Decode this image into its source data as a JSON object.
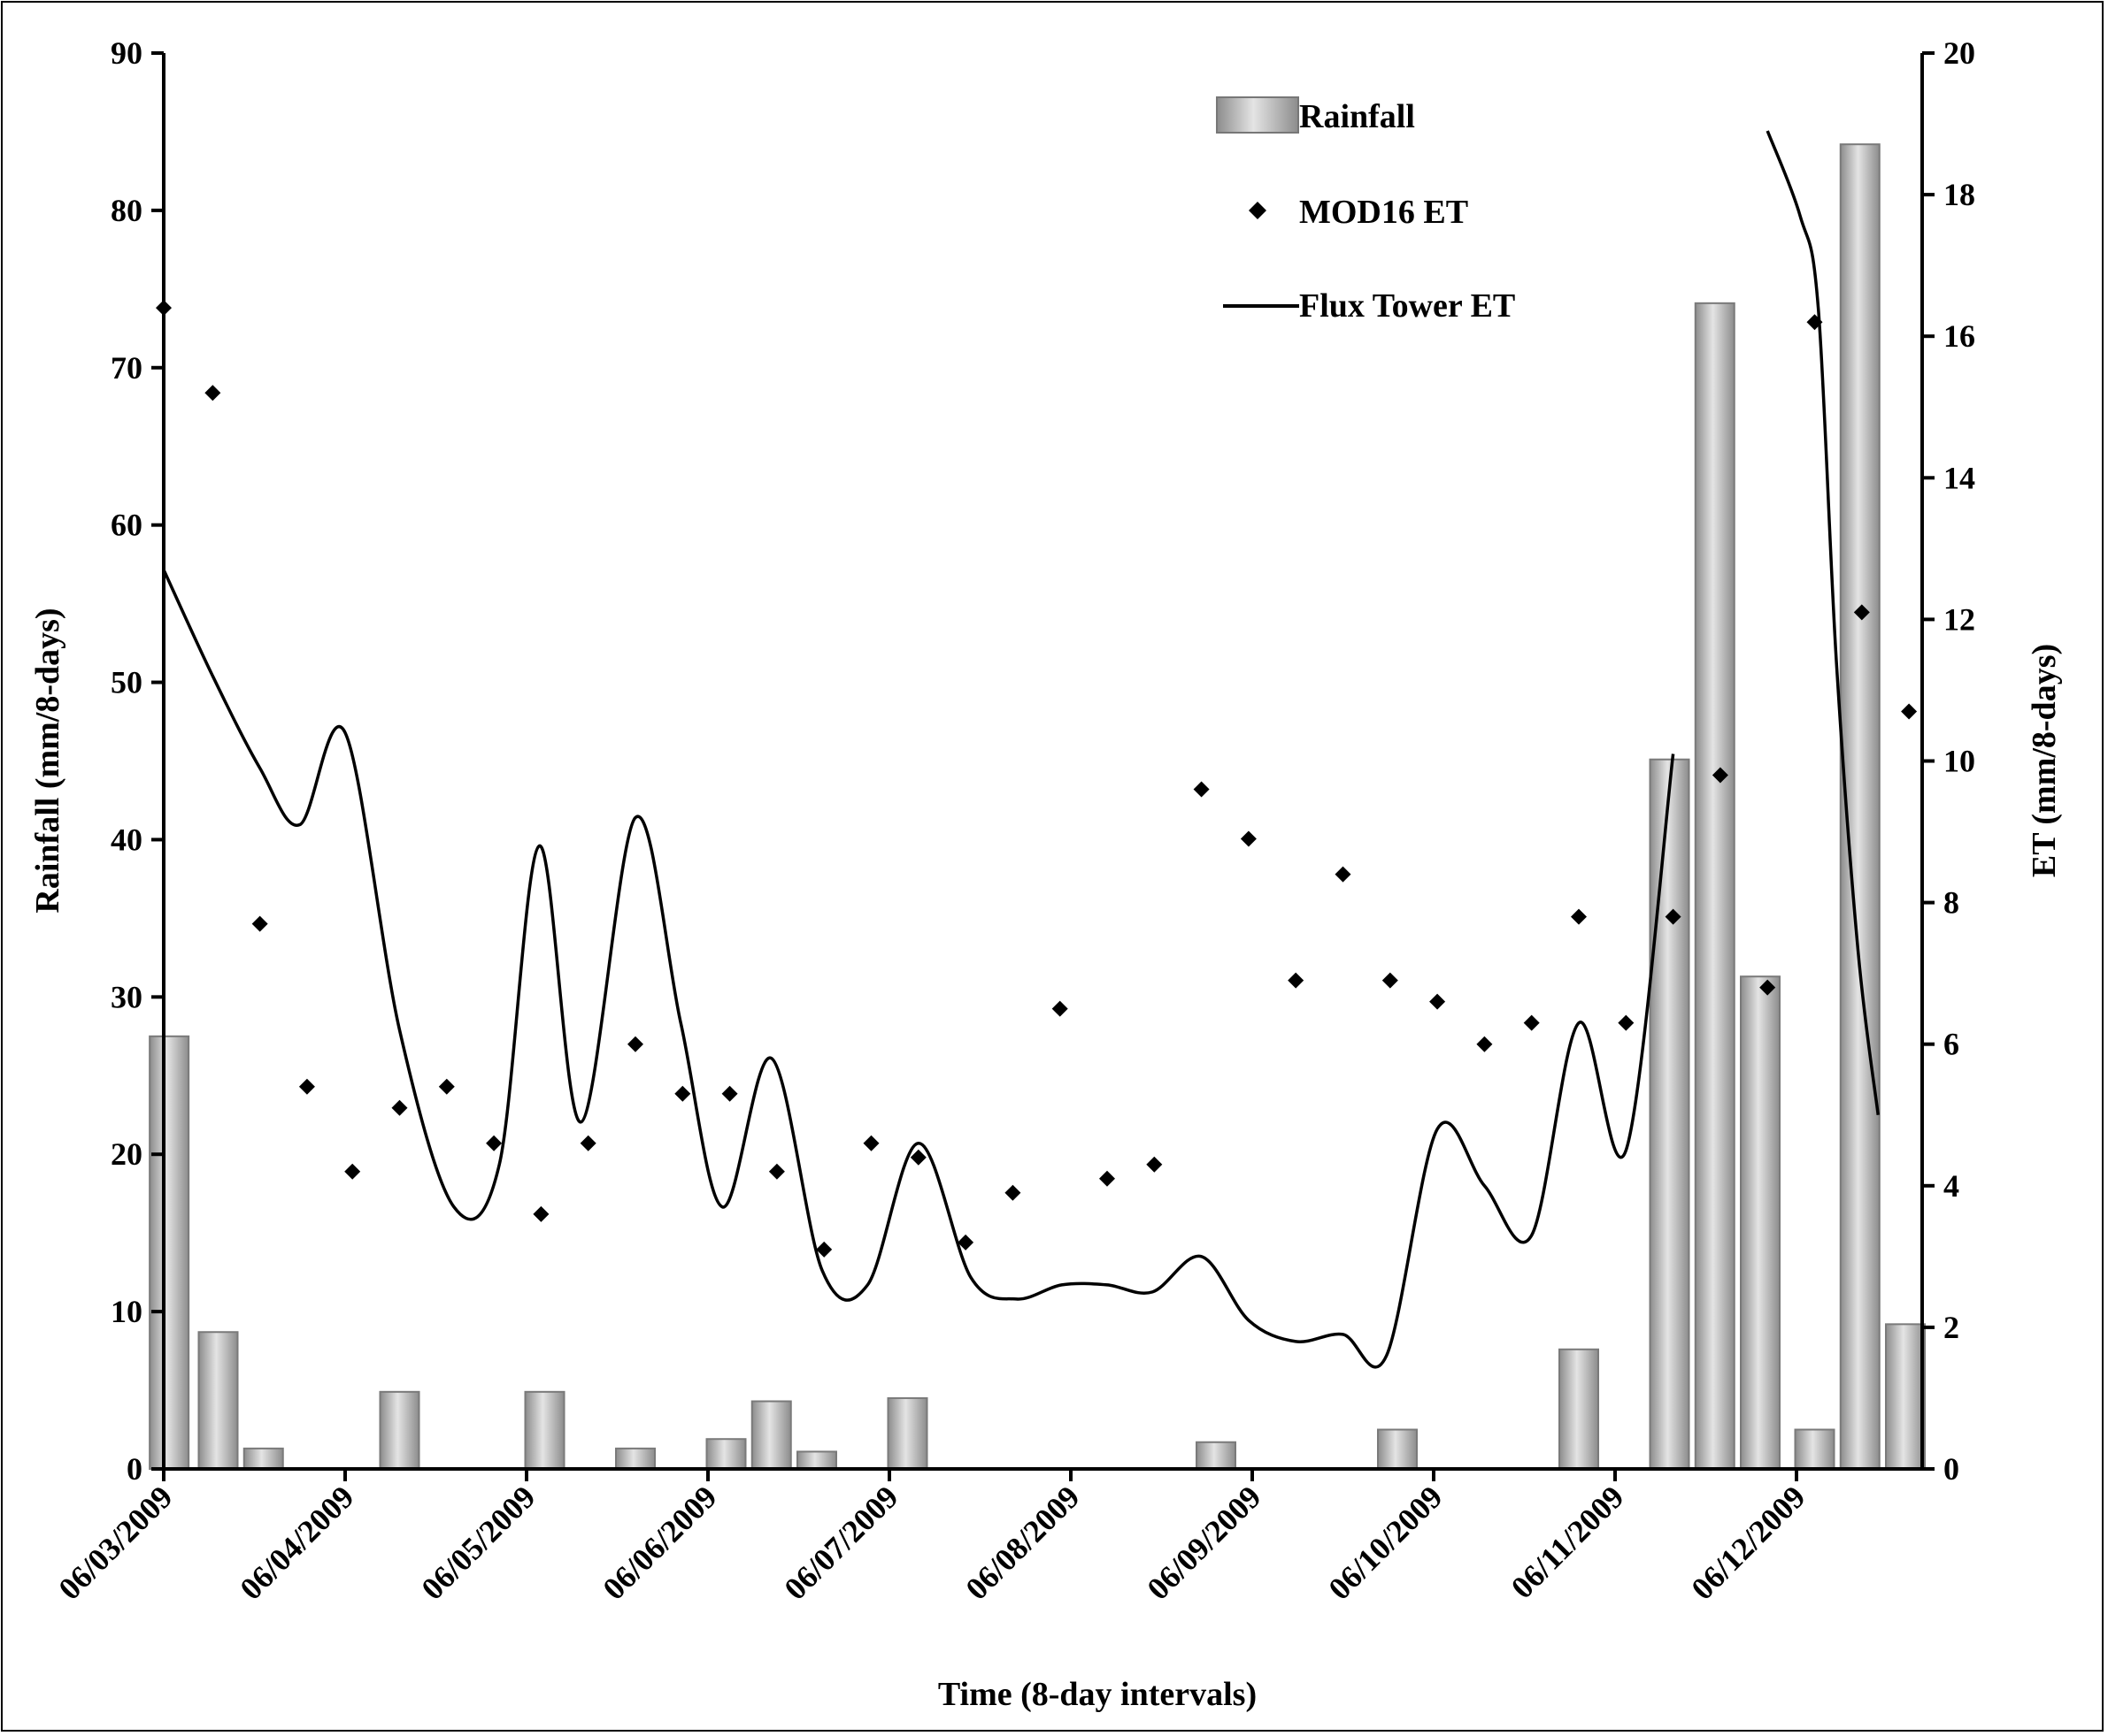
{
  "chart_data": {
    "type": "bar+scatter+line",
    "xlabel": "Time (8-day intervals)",
    "ylabel_left": "Rainfall (mm/8-days)",
    "ylabel_right": "ET (mm/8-days)",
    "ylim_left": [
      0,
      90
    ],
    "ylim_right": [
      0,
      20
    ],
    "yticks_left": [
      "0",
      "10",
      "20",
      "30",
      "40",
      "50",
      "60",
      "70",
      "80",
      "90"
    ],
    "yticks_right": [
      "0",
      "2",
      "4",
      "6",
      "8",
      "10",
      "12",
      "14",
      "16",
      "18",
      "20"
    ],
    "x_tick_labels": [
      "06/03/2009",
      "06/04/2009",
      "06/05/2009",
      "06/06/2009",
      "06/07/2009",
      "06/08/2009",
      "06/09/2009",
      "06/10/2009",
      "06/11/2009",
      "06/12/2009"
    ],
    "legend": {
      "position": "top-right",
      "rainfall": "Rainfall",
      "mod16": "MOD16 ET",
      "flux": "Flux Tower ET"
    },
    "series": [
      {
        "name": "Rainfall",
        "axis": "left",
        "kind": "bar",
        "points": [
          [
            0.03,
            27.5
          ],
          [
            0.3,
            8.7
          ],
          [
            0.55,
            1.3
          ],
          [
            1.3,
            4.9
          ],
          [
            2.1,
            4.9
          ],
          [
            2.6,
            1.3
          ],
          [
            3.1,
            1.9
          ],
          [
            3.35,
            4.3
          ],
          [
            3.6,
            1.1
          ],
          [
            4.1,
            4.5
          ],
          [
            5.8,
            1.7
          ],
          [
            6.8,
            2.5
          ],
          [
            7.8,
            7.6
          ],
          [
            8.3,
            45.1
          ],
          [
            8.55,
            74.1
          ],
          [
            8.8,
            31.3
          ],
          [
            9.1,
            2.5
          ],
          [
            9.35,
            84.2
          ],
          [
            9.6,
            9.2
          ]
        ]
      },
      {
        "name": "MOD16 ET",
        "axis": "right",
        "kind": "scatter",
        "points": [
          [
            0,
            16.4
          ],
          [
            0.27,
            15.2
          ],
          [
            0.53,
            7.7
          ],
          [
            0.79,
            5.4
          ],
          [
            1.04,
            4.2
          ],
          [
            1.3,
            5.1
          ],
          [
            1.56,
            5.4
          ],
          [
            1.82,
            4.6
          ],
          [
            2.08,
            3.6
          ],
          [
            2.34,
            4.6
          ],
          [
            2.6,
            6.0
          ],
          [
            2.86,
            5.3
          ],
          [
            3.12,
            5.3
          ],
          [
            3.38,
            4.2
          ],
          [
            3.64,
            3.1
          ],
          [
            3.9,
            4.6
          ],
          [
            4.16,
            4.4
          ],
          [
            4.42,
            3.2
          ],
          [
            4.68,
            3.9
          ],
          [
            4.94,
            6.5
          ],
          [
            5.2,
            4.1
          ],
          [
            5.46,
            4.3
          ],
          [
            5.72,
            9.6
          ],
          [
            5.98,
            8.9
          ],
          [
            6.24,
            6.9
          ],
          [
            6.5,
            8.4
          ],
          [
            6.76,
            6.9
          ],
          [
            7.02,
            6.6
          ],
          [
            7.28,
            6.0
          ],
          [
            7.54,
            6.3
          ],
          [
            7.8,
            7.8
          ],
          [
            8.06,
            6.3
          ],
          [
            8.32,
            7.8
          ],
          [
            8.58,
            9.8
          ],
          [
            8.84,
            6.8
          ],
          [
            9.1,
            16.2
          ],
          [
            9.36,
            12.1
          ],
          [
            9.62,
            10.7
          ]
        ]
      },
      {
        "name": "Flux Tower ET",
        "axis": "right",
        "kind": "line",
        "segments": [
          [
            [
              0,
              12.7
            ],
            [
              0.27,
              11.2
            ],
            [
              0.53,
              9.9
            ],
            [
              0.75,
              9.1
            ],
            [
              1.0,
              10.4
            ],
            [
              1.3,
              6.2
            ],
            [
              1.6,
              3.7
            ],
            [
              1.85,
              4.3
            ],
            [
              2.07,
              8.8
            ],
            [
              2.3,
              4.9
            ],
            [
              2.6,
              9.2
            ],
            [
              2.85,
              6.3
            ],
            [
              3.08,
              3.7
            ],
            [
              3.35,
              5.8
            ],
            [
              3.63,
              2.8
            ],
            [
              3.88,
              2.6
            ],
            [
              4.16,
              4.6
            ],
            [
              4.45,
              2.7
            ],
            [
              4.7,
              2.4
            ],
            [
              4.95,
              2.6
            ],
            [
              5.2,
              2.6
            ],
            [
              5.45,
              2.5
            ],
            [
              5.72,
              3.0
            ],
            [
              5.98,
              2.1
            ],
            [
              6.24,
              1.8
            ],
            [
              6.5,
              1.9
            ],
            [
              6.74,
              1.6
            ],
            [
              7.02,
              4.8
            ],
            [
              7.28,
              4.0
            ],
            [
              7.54,
              3.3
            ],
            [
              7.8,
              6.3
            ],
            [
              8.06,
              4.5
            ],
            [
              8.32,
              10.1
            ]
          ],
          [
            [
              8.84,
              18.9
            ],
            [
              9.02,
              17.7
            ],
            [
              9.12,
              16.4
            ],
            [
              9.22,
              11.4
            ],
            [
              9.34,
              7.3
            ],
            [
              9.45,
              5.0
            ]
          ]
        ]
      }
    ]
  }
}
